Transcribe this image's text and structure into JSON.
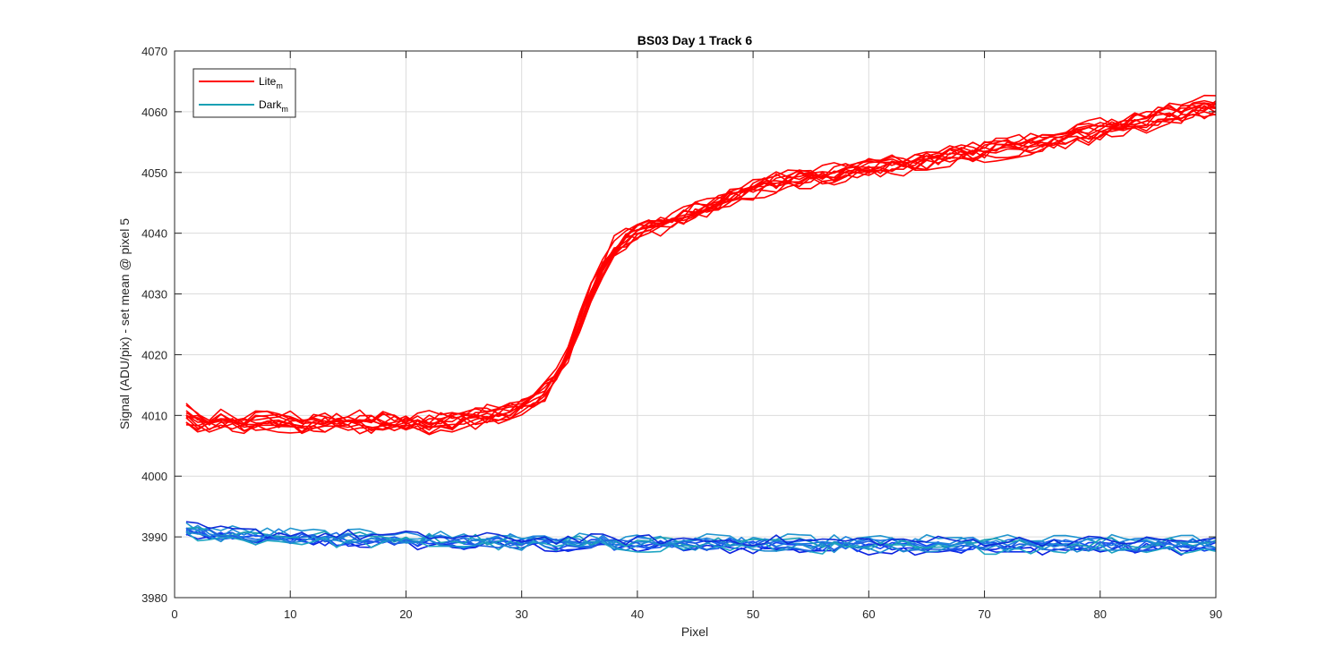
{
  "chart_data": {
    "type": "line",
    "title": "BS03 Day 1 Track 6",
    "xlabel": "Pixel",
    "ylabel": "Signal (ADU/pix) - set mean @ pixel 5",
    "xlim": [
      0,
      90
    ],
    "ylim": [
      3980,
      4070
    ],
    "xticks": [
      0,
      10,
      20,
      30,
      40,
      50,
      60,
      70,
      80,
      90
    ],
    "yticks": [
      3980,
      3990,
      4000,
      4010,
      4020,
      4030,
      4040,
      4050,
      4060,
      4070
    ],
    "grid": true,
    "legend_position": "top-left",
    "legend": [
      {
        "label": "Lite",
        "subscript": "m",
        "color": "#ff0000"
      },
      {
        "label": "Dark",
        "subscript": "m",
        "color": "#1aa0b4"
      }
    ],
    "x": [
      1,
      2,
      3,
      4,
      5,
      6,
      7,
      8,
      9,
      10,
      11,
      12,
      13,
      14,
      15,
      16,
      17,
      18,
      19,
      20,
      21,
      22,
      23,
      24,
      25,
      26,
      27,
      28,
      29,
      30,
      31,
      32,
      33,
      34,
      35,
      36,
      37,
      38,
      39,
      40,
      41,
      42,
      43,
      44,
      45,
      46,
      47,
      48,
      49,
      50,
      51,
      52,
      53,
      54,
      55,
      56,
      57,
      58,
      59,
      60,
      61,
      62,
      63,
      64,
      65,
      66,
      67,
      68,
      69,
      70,
      71,
      72,
      73,
      74,
      75,
      76,
      77,
      78,
      79,
      80,
      81,
      82,
      83,
      84,
      85,
      86,
      87,
      88,
      89,
      90
    ],
    "series": [
      {
        "group": "Lite",
        "color": "#ff0000",
        "values": [
          4010.0,
          4009.0,
          4008.5,
          4009.0,
          4009.0,
          4008.5,
          4009.0,
          4009.0,
          4009.0,
          4009.0,
          4008.5,
          4009.0,
          4008.8,
          4009.0,
          4008.8,
          4009.0,
          4008.7,
          4008.8,
          4008.6,
          4008.8,
          4008.8,
          4008.8,
          4008.9,
          4009.0,
          4009.2,
          4009.5,
          4009.8,
          4010.2,
          4010.8,
          4011.6,
          4012.6,
          4014.0,
          4016.5,
          4020.0,
          4025.0,
          4030.0,
          4034.5,
          4037.5,
          4039.2,
          4040.2,
          4040.8,
          4041.5,
          4042.2,
          4042.8,
          4043.5,
          4044.2,
          4045.0,
          4045.8,
          4046.5,
          4047.2,
          4047.8,
          4048.2,
          4048.7,
          4049.0,
          4049.3,
          4049.6,
          4049.8,
          4050.0,
          4050.3,
          4050.6,
          4050.9,
          4051.2,
          4051.5,
          4051.8,
          4052.1,
          4052.4,
          4052.7,
          4053.0,
          4053.3,
          4053.6,
          4053.9,
          4054.2,
          4054.5,
          4054.8,
          4055.1,
          4055.4,
          4055.8,
          4056.2,
          4056.6,
          4057.0,
          4057.4,
          4057.8,
          4058.2,
          4058.6,
          4059.0,
          4059.4,
          4059.8,
          4060.2,
          4060.6,
          4061.0
        ],
        "noise": 1.0,
        "offsets": [
          -1.4,
          -1.0,
          -0.6,
          -0.2,
          0.2,
          0.6,
          1.0,
          1.4,
          -0.8,
          0.4,
          -0.3,
          0.9
        ]
      },
      {
        "group": "Dark",
        "color": "#1aa0b4",
        "values": [
          3991.0,
          3990.8,
          3990.6,
          3990.4,
          3990.3,
          3990.2,
          3990.1,
          3990.0,
          3990.0,
          3989.9,
          3989.9,
          3989.8,
          3989.8,
          3989.7,
          3989.7,
          3989.6,
          3989.6,
          3989.5,
          3989.5,
          3989.5,
          3989.4,
          3989.4,
          3989.4,
          3989.3,
          3989.3,
          3989.3,
          3989.2,
          3989.2,
          3989.2,
          3989.1,
          3989.1,
          3989.1,
          3989.0,
          3989.0,
          3989.0,
          3989.0,
          3989.0,
          3988.9,
          3988.9,
          3988.9,
          3988.9,
          3988.9,
          3988.9,
          3988.9,
          3988.8,
          3988.8,
          3988.8,
          3988.8,
          3988.8,
          3988.8,
          3988.8,
          3988.8,
          3988.8,
          3988.7,
          3988.7,
          3988.7,
          3988.7,
          3988.7,
          3988.7,
          3988.7,
          3988.7,
          3988.7,
          3988.7,
          3988.7,
          3988.7,
          3988.7,
          3988.7,
          3988.7,
          3988.7,
          3988.7,
          3988.7,
          3988.7,
          3988.7,
          3988.7,
          3988.7,
          3988.7,
          3988.7,
          3988.7,
          3988.7,
          3988.7,
          3988.7,
          3988.7,
          3988.7,
          3988.7,
          3988.7,
          3988.7,
          3988.7,
          3988.7,
          3988.7,
          3988.7
        ],
        "noise": 0.9,
        "offsets": [
          -1.0,
          -0.6,
          -0.3,
          0.0,
          0.3,
          0.6,
          1.0,
          -0.8,
          0.5,
          -0.2,
          0.8,
          -0.5
        ],
        "colors": [
          "#0a1fe0",
          "#1030e8",
          "#1545f0",
          "#1a5aee",
          "#1c70e6",
          "#1e84dc",
          "#1f95cf",
          "#1ea5c2",
          "#1aa0b4",
          "#2060e0",
          "#0f2ad8",
          "#1b8ad0"
        ]
      }
    ]
  }
}
